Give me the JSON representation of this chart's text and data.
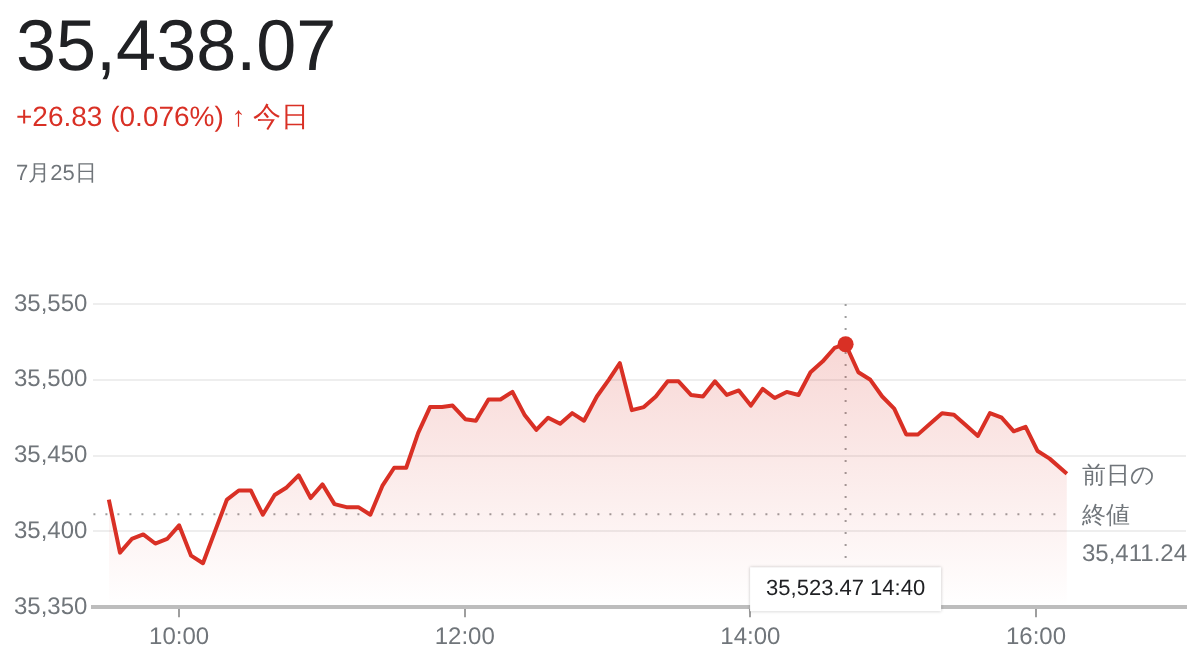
{
  "chart_data": {
    "type": "area",
    "title": "35,438.07",
    "subtitle": "+26.83 (0.076%) ↑ 今日",
    "annotations": [
      "7月25日",
      "35,411.24",
      "35,523.47 14:40"
    ],
    "x": [
      9.508,
      9.586,
      9.669,
      9.749,
      9.833,
      9.916,
      10.0,
      10.084,
      10.167,
      10.251,
      10.335,
      10.418,
      10.502,
      10.586,
      10.669,
      10.753,
      10.837,
      10.921,
      11.004,
      11.088,
      11.172,
      11.255,
      11.339,
      11.423,
      11.506,
      11.59,
      11.674,
      11.757,
      11.841,
      11.915,
      12.004,
      12.078,
      12.166,
      12.25,
      12.334,
      12.418,
      12.501,
      12.584,
      12.668,
      12.752,
      12.835,
      12.925,
      13.008,
      13.086,
      13.17,
      13.254,
      13.338,
      13.421,
      13.497,
      13.584,
      13.668,
      13.752,
      13.835,
      13.919,
      14.003,
      14.086,
      14.17,
      14.254,
      14.337,
      14.421,
      14.505,
      14.589,
      14.6667,
      14.756,
      14.84,
      14.923,
      15.007,
      15.091,
      15.174,
      15.258,
      15.342,
      15.425,
      15.509,
      15.593,
      15.677,
      15.76,
      15.844,
      15.927,
      16.011,
      16.095,
      16.216
    ],
    "series": [
      {
        "color": "#d93025",
        "values": [
          35421,
          35386,
          35395,
          35398,
          35392,
          35395,
          35404,
          35384,
          35379,
          35400,
          35421,
          35427,
          35427,
          35411,
          35424,
          35429,
          35437,
          35422,
          35431,
          35418,
          35416,
          35416,
          35411,
          35430,
          35442,
          35442,
          35465,
          35482,
          35482,
          35483,
          35474,
          35473,
          35487,
          35487,
          35492,
          35477,
          35467,
          35475,
          35471,
          35478,
          35473,
          35489,
          35500,
          35511,
          35480,
          35482,
          35489,
          35499,
          35499,
          35490,
          35489,
          35499,
          35490,
          35493,
          35483,
          35494,
          35488,
          35492,
          35490,
          35505,
          35512,
          35521,
          35523.47,
          35505,
          35500,
          35489,
          35481,
          35464,
          35464,
          35471,
          35478,
          35477,
          35470,
          35463,
          35478,
          35475,
          35466,
          35469,
          35453,
          35448,
          35438.07
        ]
      }
    ],
    "xlim": [
      9.4,
      17.05
    ],
    "ylim": [
      35350,
      35550
    ],
    "xticks": [
      {
        "value": 10,
        "label": "10:00"
      },
      {
        "value": 12,
        "label": "12:00"
      },
      {
        "value": 14,
        "label": "14:00"
      },
      {
        "value": 16,
        "label": "16:00"
      }
    ],
    "yticks": [
      {
        "value": 35350,
        "label": "35,350"
      },
      {
        "value": 35400,
        "label": "35,400"
      },
      {
        "value": 35450,
        "label": "35,450"
      },
      {
        "value": 35500,
        "label": "35,500"
      },
      {
        "value": 35550,
        "label": "35,550"
      }
    ],
    "ref_lines": [
      {
        "axis": "y",
        "value": 35411.24,
        "label": "前日の終値",
        "color": "#9e9e9e",
        "line_style": "dotted"
      },
      {
        "axis": "x",
        "value": 14.6667,
        "color": "#9e9e9e",
        "line_style": "dotted"
      }
    ],
    "grid": "y",
    "legend": false,
    "marker": "none",
    "line_style": "solid"
  }
}
